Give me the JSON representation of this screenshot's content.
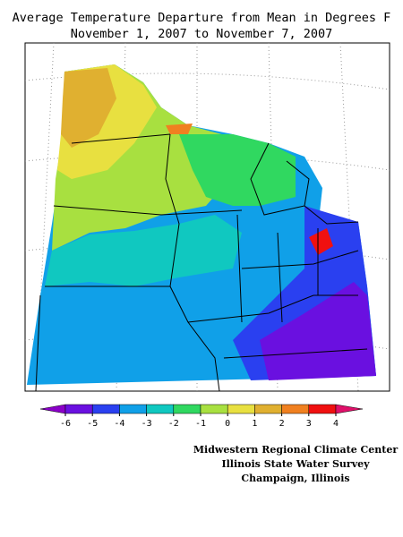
{
  "title": [
    "Average Temperature Departure from Mean in Degrees F",
    "November 1, 2007 to November 7, 2007"
  ],
  "legend": {
    "ticks": [
      -6,
      -5,
      -4,
      -3,
      -2,
      -1,
      0,
      1,
      2,
      3,
      4
    ],
    "colors": [
      "#8a00c8",
      "#6a10e0",
      "#2a40f0",
      "#10a0e8",
      "#10c8c0",
      "#30d860",
      "#a8e040",
      "#e8e040",
      "#e0b030",
      "#f08020",
      "#f01010",
      "#e0106a"
    ]
  },
  "credits": [
    "Midwestern Regional Climate Center",
    "Illinois State Water Survey",
    "Champaign, Illinois"
  ]
}
